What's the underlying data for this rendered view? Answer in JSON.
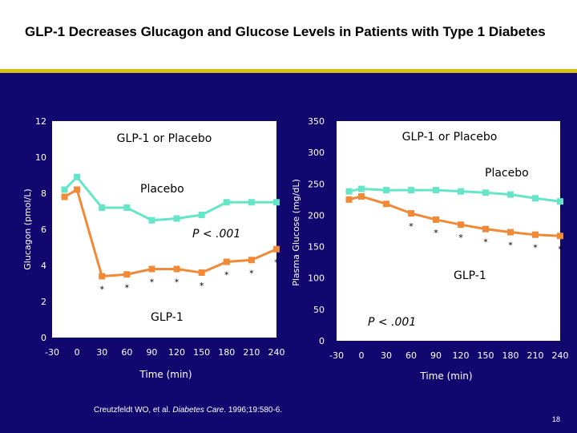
{
  "slide": {
    "title": "GLP-1 Decreases Glucagon and Glucose Levels in Patients with Type 1 Diabetes",
    "citation_authors": "Creutzfeldt WO, et al.",
    "citation_journal": "Diabetes Care",
    "citation_rest": ". 1996;19:580-6.",
    "page_number": "18",
    "colors": {
      "background": "#10086e",
      "accent_rule": "#d8c21a",
      "placebo": "#66e6c8",
      "glp1": "#f08a36",
      "text": "#ffffff"
    }
  },
  "chart_data": [
    {
      "type": "line",
      "title": "GLP-1 or Placebo",
      "xlabel": "Time (min)",
      "ylabel": "Glucagon (pmol/L)",
      "xlim": [
        -30,
        240
      ],
      "ylim": [
        0,
        12
      ],
      "xticks": [
        -30,
        0,
        30,
        60,
        90,
        120,
        150,
        180,
        210,
        240
      ],
      "yticks": [
        0,
        2,
        4,
        6,
        8,
        10,
        12
      ],
      "annotation_p": "P < .001",
      "series": [
        {
          "name": "Placebo",
          "color": "#66e6c8",
          "x": [
            -15,
            0,
            30,
            60,
            90,
            120,
            150,
            180,
            210,
            240
          ],
          "y": [
            8.2,
            8.9,
            7.2,
            7.2,
            6.5,
            6.6,
            6.8,
            7.5,
            7.5,
            7.5
          ],
          "markers": [
            "",
            "",
            "",
            "",
            "",
            "",
            "",
            "",
            "",
            ""
          ]
        },
        {
          "name": "GLP-1",
          "color": "#f08a36",
          "x": [
            -15,
            0,
            30,
            60,
            90,
            120,
            150,
            180,
            210,
            240
          ],
          "y": [
            7.8,
            8.2,
            3.4,
            3.5,
            3.8,
            3.8,
            3.6,
            4.2,
            4.3,
            4.9
          ],
          "markers": [
            "",
            "",
            "*",
            "*",
            "*",
            "*",
            "*",
            "*",
            "*",
            "*"
          ]
        }
      ]
    },
    {
      "type": "line",
      "title": "GLP-1 or Placebo",
      "xlabel": "Time (min)",
      "ylabel": "Plasma Glucose (mg/dL)",
      "xlim": [
        -30,
        240
      ],
      "ylim": [
        0,
        350
      ],
      "xticks": [
        -30,
        0,
        30,
        60,
        90,
        120,
        150,
        180,
        210,
        240
      ],
      "yticks": [
        0,
        50,
        100,
        150,
        200,
        250,
        300,
        350
      ],
      "annotation_p": "P < .001",
      "series": [
        {
          "name": "Placebo",
          "color": "#66e6c8",
          "x": [
            -15,
            0,
            30,
            60,
            90,
            120,
            150,
            180,
            210,
            240
          ],
          "y": [
            238,
            242,
            240,
            240,
            240,
            238,
            236,
            233,
            227,
            222
          ],
          "markers": [
            "",
            "",
            "",
            "",
            "",
            "",
            "",
            "",
            "",
            ""
          ]
        },
        {
          "name": "GLP-1",
          "color": "#f08a36",
          "x": [
            -15,
            0,
            30,
            60,
            90,
            120,
            150,
            180,
            210,
            240
          ],
          "y": [
            225,
            230,
            218,
            203,
            193,
            185,
            178,
            173,
            169,
            167
          ],
          "markers": [
            "",
            "",
            "",
            "*",
            "*",
            "*",
            "*",
            "*",
            "*",
            "*"
          ]
        }
      ]
    }
  ]
}
